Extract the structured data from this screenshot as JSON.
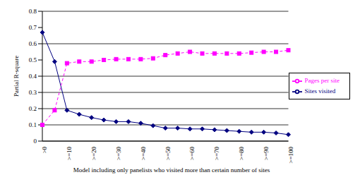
{
  "chart_data": {
    "type": "line",
    "y_label": "Partial R-square",
    "x_label": "Model including only panelists who visited more than certain number of sites",
    "categories": [
      ">0",
      null,
      ">=10",
      null,
      ">=20",
      null,
      ">=30",
      null,
      ">=40",
      null,
      ">=50",
      null,
      ">=60",
      null,
      ">=70",
      null,
      ">=80",
      null,
      ">=90",
      null,
      ">=100"
    ],
    "series": [
      {
        "name": "Sites visited",
        "color": "#000080",
        "marker": "diamond",
        "line_style": "solid",
        "values": [
          0.67,
          0.49,
          0.19,
          0.165,
          0.145,
          0.13,
          0.12,
          0.12,
          0.11,
          0.095,
          0.08,
          0.08,
          0.075,
          0.075,
          0.07,
          0.065,
          0.06,
          0.055,
          0.055,
          0.05,
          0.04
        ]
      },
      {
        "name": "Pages per site",
        "color": "#FF00FF",
        "marker": "square",
        "line_style": "dashed",
        "values": [
          0.1,
          0.19,
          0.48,
          0.49,
          0.49,
          0.5,
          0.505,
          0.505,
          0.505,
          0.51,
          0.53,
          0.54,
          0.55,
          0.54,
          0.54,
          0.54,
          0.54,
          0.545,
          0.55,
          0.55,
          0.56
        ]
      }
    ],
    "ylim": [
      0,
      0.8
    ],
    "yticks": [
      0,
      0.1,
      0.2,
      0.3,
      0.4,
      0.5,
      0.6,
      0.7,
      0.8
    ],
    "grid": true,
    "legend": "right"
  }
}
